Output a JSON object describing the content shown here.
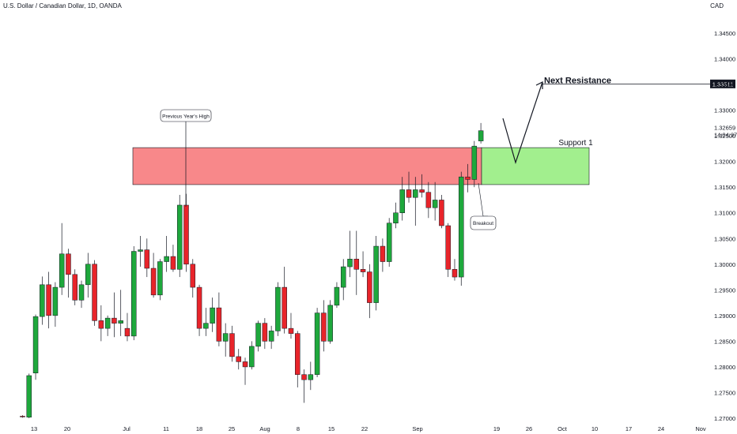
{
  "header": {
    "symbol": "U.S. Dollar / Canadian Dollar, 1D, OANDA",
    "currency": "CAD"
  },
  "colors": {
    "up": "#1ea83c",
    "down": "#e8242a",
    "resistance_zone": "#f8888a",
    "support_zone": "#a2ef8e",
    "axis_text": "#131722",
    "price_tag_bg": "#131722"
  },
  "chart_data": {
    "type": "candlestick",
    "y_ticks": [
      "1.34500",
      "1.34000",
      "1.33500",
      "1.33000",
      "1.32500",
      "1.32000",
      "1.31500",
      "1.31000",
      "1.30500",
      "1.30000",
      "1.29500",
      "1.29000",
      "1.28500",
      "1.28000",
      "1.27500",
      "1.27000"
    ],
    "ylim": [
      1.2695,
      1.348
    ],
    "x_ticks": [
      "13",
      "20",
      "Jul",
      "11",
      "18",
      "25",
      "Aug",
      "8",
      "15",
      "22",
      "Sep",
      "19",
      "26",
      "Oct",
      "10",
      "17",
      "24",
      "Nov"
    ],
    "ohlc": [
      [
        1.2704,
        1.2706,
        1.2701,
        1.2703
      ],
      [
        1.2702,
        1.2787,
        1.27,
        1.2783
      ],
      [
        1.2788,
        1.2902,
        1.2775,
        1.2898
      ],
      [
        1.2898,
        1.2976,
        1.2882,
        1.296
      ],
      [
        1.296,
        1.2985,
        1.2875,
        1.29
      ],
      [
        1.29,
        1.2965,
        1.2878,
        1.2955
      ],
      [
        1.2955,
        1.308,
        1.294,
        1.302
      ],
      [
        1.302,
        1.303,
        1.2935,
        1.298
      ],
      [
        1.298,
        1.299,
        1.292,
        1.293
      ],
      [
        1.293,
        1.2968,
        1.2915,
        1.296
      ],
      [
        1.296,
        1.3022,
        1.2935,
        1.3
      ],
      [
        1.3,
        1.3008,
        1.288,
        1.289
      ],
      [
        1.289,
        1.292,
        1.285,
        1.2875
      ],
      [
        1.2875,
        1.29,
        1.286,
        1.2895
      ],
      [
        1.2895,
        1.2945,
        1.2858,
        1.2885
      ],
      [
        1.2885,
        1.295,
        1.286,
        1.289
      ],
      [
        1.2875,
        1.2905,
        1.285,
        1.286
      ],
      [
        1.286,
        1.3035,
        1.2852,
        1.3025
      ],
      [
        1.3025,
        1.3055,
        1.2995,
        1.3028
      ],
      [
        1.3028,
        1.305,
        1.2975,
        1.2992
      ],
      [
        1.2992,
        1.3022,
        1.2935,
        1.294
      ],
      [
        1.294,
        1.301,
        1.293,
        1.3005
      ],
      [
        1.3005,
        1.3055,
        1.2985,
        1.3015
      ],
      [
        1.3015,
        1.3038,
        1.2985,
        1.299
      ],
      [
        1.299,
        1.3135,
        1.2975,
        1.3115
      ],
      [
        1.3115,
        1.3137,
        1.2985,
        1.3
      ],
      [
        1.3,
        1.301,
        1.2935,
        1.2955
      ],
      [
        1.2955,
        1.296,
        1.286,
        1.2875
      ],
      [
        1.2875,
        1.2915,
        1.286,
        1.2885
      ],
      [
        1.2885,
        1.2935,
        1.2868,
        1.2915
      ],
      [
        1.2915,
        1.2945,
        1.284,
        1.285
      ],
      [
        1.285,
        1.2885,
        1.282,
        1.2865
      ],
      [
        1.2865,
        1.288,
        1.281,
        1.282
      ],
      [
        1.282,
        1.2835,
        1.2795,
        1.281
      ],
      [
        1.281,
        1.2818,
        1.2765,
        1.28
      ],
      [
        1.28,
        1.285,
        1.2795,
        1.284
      ],
      [
        1.284,
        1.289,
        1.283,
        1.2885
      ],
      [
        1.2885,
        1.2895,
        1.2835,
        1.285
      ],
      [
        1.285,
        1.288,
        1.2835,
        1.287
      ],
      [
        1.287,
        1.2965,
        1.286,
        1.2955
      ],
      [
        1.2955,
        1.2995,
        1.2865,
        1.2875
      ],
      [
        1.2875,
        1.2905,
        1.2855,
        1.2865
      ],
      [
        1.2865,
        1.287,
        1.276,
        1.2785
      ],
      [
        1.2785,
        1.2795,
        1.273,
        1.2775
      ],
      [
        1.2775,
        1.281,
        1.2755,
        1.2785
      ],
      [
        1.2785,
        1.2915,
        1.278,
        1.2905
      ],
      [
        1.2905,
        1.293,
        1.283,
        1.285
      ],
      [
        1.285,
        1.293,
        1.2845,
        1.292
      ],
      [
        1.292,
        1.2965,
        1.2915,
        1.2955
      ],
      [
        1.2955,
        1.301,
        1.293,
        1.2995
      ],
      [
        1.2995,
        1.3065,
        1.2975,
        1.301
      ],
      [
        1.301,
        1.3065,
        1.294,
        1.299
      ],
      [
        1.299,
        1.3025,
        1.2975,
        1.2985
      ],
      [
        1.2985,
        1.3,
        1.2895,
        1.2925
      ],
      [
        1.2925,
        1.3055,
        1.291,
        1.3035
      ],
      [
        1.3035,
        1.305,
        1.2985,
        1.3005
      ],
      [
        1.3005,
        1.309,
        1.2995,
        1.308
      ],
      [
        1.308,
        1.312,
        1.307,
        1.31
      ],
      [
        1.31,
        1.317,
        1.3085,
        1.3145
      ],
      [
        1.3145,
        1.318,
        1.312,
        1.313
      ],
      [
        1.313,
        1.317,
        1.3075,
        1.3145
      ],
      [
        1.3145,
        1.3175,
        1.313,
        1.314
      ],
      [
        1.314,
        1.316,
        1.309,
        1.311
      ],
      [
        1.311,
        1.316,
        1.3085,
        1.3125
      ],
      [
        1.3125,
        1.3135,
        1.307,
        1.3075
      ],
      [
        1.3075,
        1.308,
        1.2975,
        1.299
      ],
      [
        1.299,
        1.301,
        1.2968,
        1.2975
      ],
      [
        1.2975,
        1.318,
        1.2958,
        1.317
      ],
      [
        1.317,
        1.3195,
        1.314,
        1.3165
      ],
      [
        1.3165,
        1.324,
        1.315,
        1.323
      ],
      [
        1.324,
        1.3275,
        1.3235,
        1.326
      ]
    ],
    "zones": [
      {
        "label": "",
        "top": 1.3227,
        "bottom": 1.3155
      },
      {
        "label": "Support 1",
        "top": 1.3227,
        "bottom": 1.3155
      }
    ],
    "annotations": {
      "previous_high": "Previous Year's High",
      "breakout": "Breakout",
      "next_resistance": "Next Resistance",
      "next_resistance_price": "1.33511",
      "last_price": "1.32659",
      "countdown": "14:04:37"
    }
  }
}
